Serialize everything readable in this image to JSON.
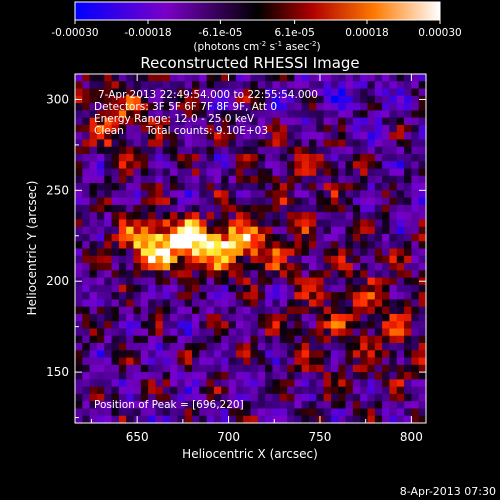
{
  "colorbar": {
    "ticks": [
      "-0.00030",
      "-0.00018",
      "-6.1e-05",
      "6.1e-05",
      "0.00018",
      "0.00030"
    ],
    "tick_values": [
      -0.0003,
      -0.00018,
      -6.1e-05,
      6.1e-05,
      0.00018,
      0.0003
    ],
    "range": [
      -0.0003,
      0.0003
    ],
    "units_main": "(photons cm",
    "units_exp1": "-2",
    "units_mid": " s",
    "units_exp2": "-1",
    "units_mid2": " asec",
    "units_exp3": "-2",
    "units_end": ")",
    "colors": [
      "#0000ff",
      "#7a00c8",
      "#000000",
      "#b00000",
      "#ff7a00",
      "#ffffff"
    ]
  },
  "title": "Reconstructed RHESSI Image",
  "info": {
    "time": "7-Apr-2013 22:49:54.000 to 22:55:54.000",
    "detectors": "Detectors: 3F 5F 6F 7F 8F 9F, Att 0",
    "energy": "Energy Range: 12.0 - 25.0 keV",
    "clean_label": "Clean",
    "counts": "Total counts: 9.10E+03"
  },
  "peak": "Position of Peak = [696,220]",
  "footer": "8-Apr-2013 07:30",
  "chart_data": {
    "type": "heatmap",
    "title": "Reconstructed RHESSI Image",
    "xlabel": "Heliocentric X (arcsec)",
    "ylabel": "Heliocentric Y (arcsec)",
    "xlim": [
      616,
      808
    ],
    "ylim": [
      122,
      314
    ],
    "xticks": [
      650,
      700,
      750,
      800
    ],
    "yticks": [
      150,
      200,
      250,
      300
    ],
    "x_tick_labels": [
      "650",
      "700",
      "750",
      "800"
    ],
    "y_tick_labels": [
      "150",
      "200",
      "250",
      "300"
    ],
    "peak_position": [
      696,
      220
    ],
    "grid": false
  }
}
